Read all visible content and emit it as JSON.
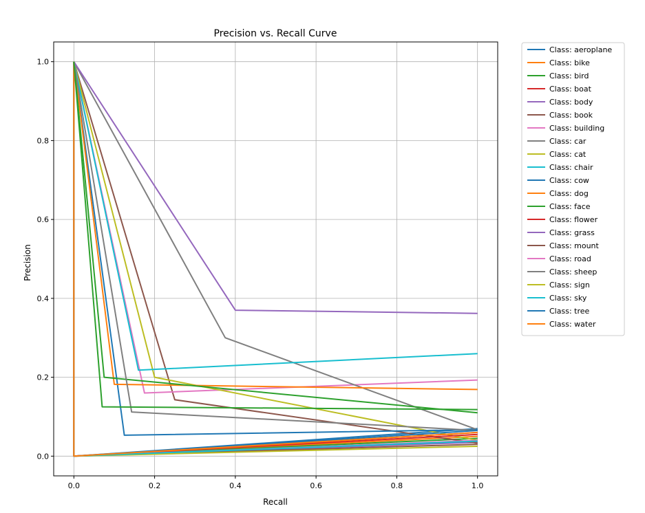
{
  "chart_data": {
    "type": "line",
    "title": "Precision vs. Recall Curve",
    "xlabel": "Recall",
    "ylabel": "Precision",
    "xlim": [
      -0.05,
      1.05
    ],
    "ylim": [
      -0.05,
      1.05
    ],
    "x_ticks": [
      "0.0",
      "0.2",
      "0.4",
      "0.6",
      "0.8",
      "1.0"
    ],
    "y_ticks": [
      "0.0",
      "0.2",
      "0.4",
      "0.6",
      "0.8",
      "1.0"
    ],
    "grid": true,
    "legend_position": "outside-right-top",
    "series": [
      {
        "name": "Class: aeroplane",
        "color": "#1f77b4",
        "x": [
          0.0,
          0.0,
          1.0
        ],
        "y": [
          1.0,
          0.0,
          0.07
        ]
      },
      {
        "name": "Class: bike",
        "color": "#ff7f0e",
        "x": [
          0.0,
          0.0,
          1.0
        ],
        "y": [
          1.0,
          0.0,
          0.05
        ]
      },
      {
        "name": "Class: bird",
        "color": "#2ca02c",
        "x": [
          0.0,
          0.0,
          1.0
        ],
        "y": [
          1.0,
          0.0,
          0.045
        ]
      },
      {
        "name": "Class: boat",
        "color": "#d62728",
        "x": [
          0.0,
          0.0,
          1.0
        ],
        "y": [
          1.0,
          0.0,
          0.06
        ]
      },
      {
        "name": "Class: body",
        "color": "#9467bd",
        "x": [
          0.0,
          0.0,
          1.0
        ],
        "y": [
          1.0,
          0.0,
          0.035
        ]
      },
      {
        "name": "Class: book",
        "color": "#8c564b",
        "x": [
          0.0,
          0.25,
          1.0
        ],
        "y": [
          1.0,
          0.143,
          0.033
        ]
      },
      {
        "name": "Class: building",
        "color": "#e377c2",
        "x": [
          0.0,
          0.175,
          1.0
        ],
        "y": [
          1.0,
          0.16,
          0.193
        ]
      },
      {
        "name": "Class: car",
        "color": "#7f7f7f",
        "x": [
          0.0,
          0.375,
          1.0
        ],
        "y": [
          1.0,
          0.3,
          0.067
        ]
      },
      {
        "name": "Class: cat",
        "color": "#bcbd22",
        "x": [
          0.0,
          0.2,
          1.0
        ],
        "y": [
          1.0,
          0.2,
          0.04
        ]
      },
      {
        "name": "Class: chair",
        "color": "#17becf",
        "x": [
          0.0,
          0.16,
          1.0
        ],
        "y": [
          1.0,
          0.218,
          0.26
        ]
      },
      {
        "name": "Class: cow",
        "color": "#1f77b4",
        "x": [
          0.0,
          0.125,
          1.0
        ],
        "y": [
          1.0,
          0.053,
          0.067
        ]
      },
      {
        "name": "Class: dog",
        "color": "#ff7f0e",
        "x": [
          0.0,
          0.1,
          1.0
        ],
        "y": [
          1.0,
          0.182,
          0.169
        ]
      },
      {
        "name": "Class: face",
        "color": "#2ca02c",
        "x": [
          0.0,
          0.075,
          1.0
        ],
        "y": [
          1.0,
          0.2,
          0.11
        ]
      },
      {
        "name": "Class: flower",
        "color": "#d62728",
        "x": [
          0.0,
          0.0,
          1.0
        ],
        "y": [
          1.0,
          0.0,
          0.055
        ]
      },
      {
        "name": "Class: grass",
        "color": "#9467bd",
        "x": [
          0.0,
          0.4,
          1.0
        ],
        "y": [
          1.0,
          0.37,
          0.362
        ]
      },
      {
        "name": "Class: mount",
        "color": "#8c564b",
        "x": [
          0.0,
          0.0,
          1.0
        ],
        "y": [
          1.0,
          0.0,
          0.03
        ]
      },
      {
        "name": "Class: road",
        "color": "#e377c2",
        "x": [
          0.0,
          0.0,
          1.0
        ],
        "y": [
          1.0,
          0.0,
          0.04
        ]
      },
      {
        "name": "Class: sheep",
        "color": "#7f7f7f",
        "x": [
          0.0,
          0.143,
          1.0
        ],
        "y": [
          1.0,
          0.112,
          0.065
        ]
      },
      {
        "name": "Class: sign",
        "color": "#bcbd22",
        "x": [
          0.0,
          0.0,
          1.0
        ],
        "y": [
          1.0,
          0.0,
          0.025
        ]
      },
      {
        "name": "Class: sky",
        "color": "#17becf",
        "x": [
          0.0,
          0.0,
          1.0
        ],
        "y": [
          1.0,
          0.0,
          0.038
        ]
      },
      {
        "name": "Class: tree",
        "color": "#1f77b4",
        "x": [
          0.0,
          0.0,
          1.0
        ],
        "y": [
          1.0,
          0.0,
          0.065
        ]
      },
      {
        "name": "Class: water",
        "color": "#ff7f0e",
        "x": [
          0.0,
          0.0,
          1.0
        ],
        "y": [
          1.0,
          0.0,
          0.06
        ]
      },
      {
        "name": "Class: face",
        "color": "#2ca02c",
        "x": [
          0.0,
          0.07,
          1.0
        ],
        "y": [
          1.0,
          0.125,
          0.118
        ]
      }
    ]
  }
}
